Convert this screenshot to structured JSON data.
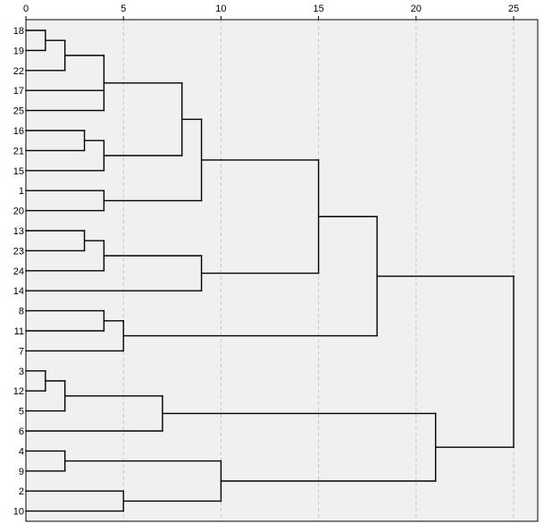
{
  "chart_data": {
    "type": "dendrogram",
    "x_ticks": [
      0,
      5,
      10,
      15,
      20,
      25
    ],
    "xlim": [
      0,
      25
    ],
    "grid": "vertical-dashed",
    "leaves": [
      "18",
      "19",
      "22",
      "17",
      "25",
      "16",
      "21",
      "15",
      "1",
      "20",
      "13",
      "23",
      "24",
      "14",
      "8",
      "11",
      "7",
      "3",
      "12",
      "5",
      "6",
      "4",
      "9",
      "2",
      "10"
    ],
    "merges": [
      {
        "id": "A",
        "children": [
          "18",
          "19"
        ],
        "height": 1
      },
      {
        "id": "B",
        "children": [
          "A",
          "22"
        ],
        "height": 2
      },
      {
        "id": "C",
        "children": [
          "B",
          "17",
          "25"
        ],
        "height": 4
      },
      {
        "id": "D",
        "children": [
          "16",
          "21"
        ],
        "height": 3
      },
      {
        "id": "E",
        "children": [
          "D",
          "15"
        ],
        "height": 4
      },
      {
        "id": "F",
        "children": [
          "C",
          "E"
        ],
        "height": 8
      },
      {
        "id": "G",
        "children": [
          "1",
          "20"
        ],
        "height": 4
      },
      {
        "id": "H",
        "children": [
          "F",
          "G"
        ],
        "height": 9
      },
      {
        "id": "I",
        "children": [
          "13",
          "23"
        ],
        "height": 3
      },
      {
        "id": "J",
        "children": [
          "I",
          "24"
        ],
        "height": 4
      },
      {
        "id": "K",
        "children": [
          "J",
          "14"
        ],
        "height": 9
      },
      {
        "id": "L",
        "children": [
          "H",
          "K"
        ],
        "height": 15
      },
      {
        "id": "M",
        "children": [
          "8",
          "11"
        ],
        "height": 4
      },
      {
        "id": "N",
        "children": [
          "M",
          "7"
        ],
        "height": 5
      },
      {
        "id": "O",
        "children": [
          "L",
          "N"
        ],
        "height": 18
      },
      {
        "id": "P",
        "children": [
          "3",
          "12"
        ],
        "height": 1
      },
      {
        "id": "Q",
        "children": [
          "P",
          "5"
        ],
        "height": 2
      },
      {
        "id": "R",
        "children": [
          "Q",
          "6"
        ],
        "height": 7
      },
      {
        "id": "S",
        "children": [
          "4",
          "9"
        ],
        "height": 2
      },
      {
        "id": "T",
        "children": [
          "2",
          "10"
        ],
        "height": 5
      },
      {
        "id": "U",
        "children": [
          "S",
          "T"
        ],
        "height": 10
      },
      {
        "id": "V",
        "children": [
          "R",
          "U"
        ],
        "height": 21
      },
      {
        "id": "W",
        "children": [
          "O",
          "V"
        ],
        "height": 25
      }
    ],
    "colors": {
      "plot_background": "#f0f0f0",
      "grid": "#c8c8c8",
      "line": "#000000",
      "frame": "#000000"
    }
  }
}
